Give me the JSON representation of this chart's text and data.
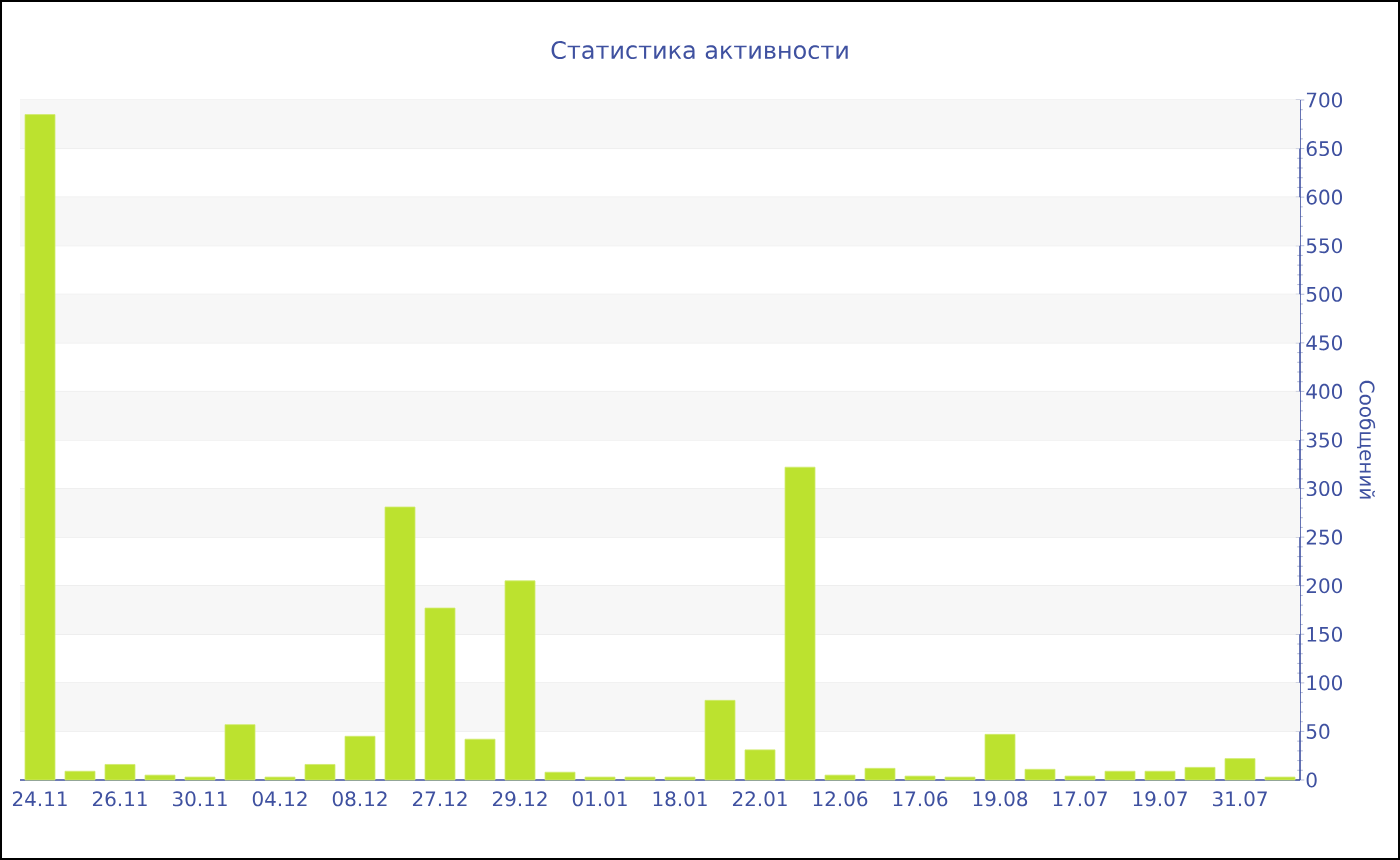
{
  "chart_data": {
    "type": "bar",
    "title": "Статистика активности",
    "ylabel": "Сообщений",
    "categories": [
      "24.11",
      null,
      "26.11",
      null,
      "30.11",
      null,
      "04.12",
      null,
      "08.12",
      null,
      "27.12",
      null,
      "29.12",
      null,
      "01.01",
      null,
      "18.01",
      null,
      "22.01",
      null,
      "12.06",
      null,
      "17.06",
      null,
      "19.08",
      null,
      "17.07",
      null,
      "19.07",
      null,
      "31.07",
      null
    ],
    "values": [
      685,
      9,
      16,
      5,
      3,
      57,
      3,
      16,
      45,
      281,
      177,
      42,
      205,
      8,
      3,
      3,
      3,
      82,
      31,
      322,
      5,
      12,
      4,
      3,
      47,
      11,
      4,
      9,
      9,
      13,
      22,
      3
    ],
    "color": "#bce22f",
    "ylim": [
      0,
      700
    ],
    "yticks": [
      0,
      50,
      100,
      150,
      200,
      250,
      300,
      350,
      400,
      450,
      500,
      550,
      600,
      650,
      700
    ],
    "grid": "y"
  }
}
